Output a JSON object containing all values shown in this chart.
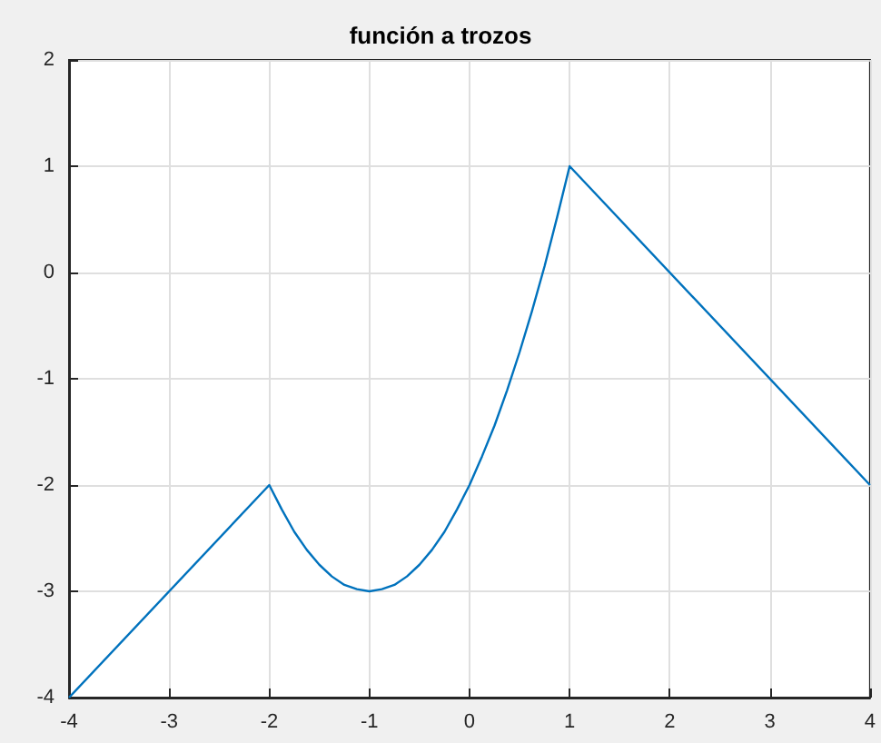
{
  "chart_data": {
    "type": "line",
    "title": "función a trozos",
    "series": [
      {
        "color": "#0072bd",
        "x": [
          -4,
          -2,
          -1.875,
          -1.75,
          -1.625,
          -1.5,
          -1.375,
          -1.25,
          -1.125,
          -1,
          -0.875,
          -0.75,
          -0.625,
          -0.5,
          -0.375,
          -0.25,
          -0.125,
          0,
          0.125,
          0.25,
          0.375,
          0.5,
          0.625,
          0.75,
          0.875,
          1,
          4
        ],
        "values": [
          -4,
          -2,
          -2.23,
          -2.44,
          -2.61,
          -2.75,
          -2.86,
          -2.94,
          -2.98,
          -3,
          -2.98,
          -2.94,
          -2.86,
          -2.75,
          -2.61,
          -2.44,
          -2.23,
          -2,
          -1.73,
          -1.44,
          -1.11,
          -0.75,
          -0.36,
          0.06,
          0.52,
          1,
          -2
        ]
      }
    ],
    "xlim": [
      -4,
      4
    ],
    "xticks": [
      -4,
      -3,
      -2,
      -1,
      0,
      1,
      2,
      3,
      4
    ],
    "ylim": [
      -4,
      2
    ],
    "yticks": [
      -4,
      -3,
      -2,
      -1,
      0,
      1,
      2
    ],
    "grid": true,
    "marker": "none",
    "line_style": "solid"
  }
}
